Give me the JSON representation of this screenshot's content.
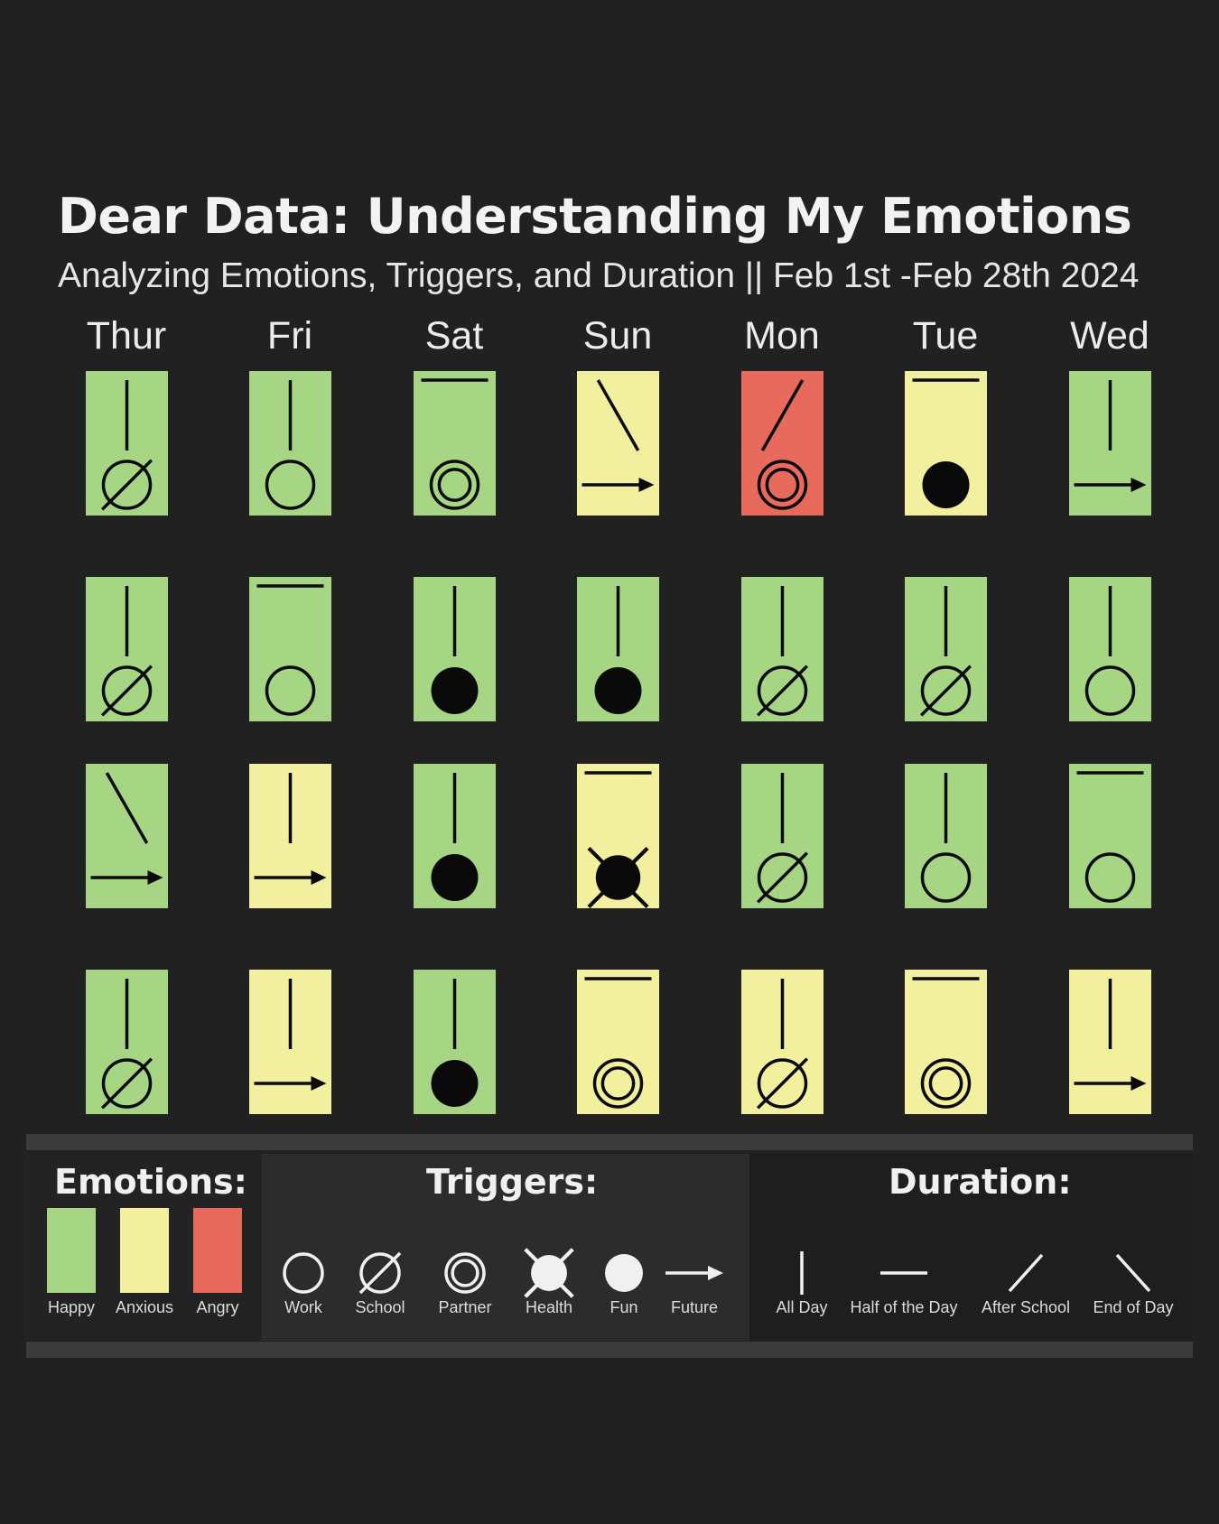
{
  "title": "Dear Data: Understanding My Emotions",
  "subtitle": "Analyzing Emotions, Triggers, and Duration || Feb 1st -Feb 28th 2024",
  "days": [
    "Thur",
    "Fri",
    "Sat",
    "Sun",
    "Mon",
    "Tue",
    "Wed"
  ],
  "colors": {
    "background": "#212121",
    "happy": "#a6d683",
    "anxious": "#f2ef9e",
    "angry": "#e86a5c",
    "stroke": "#0a0a0a"
  },
  "entries": [
    [
      {
        "emotion": "happy",
        "duration": "all-day",
        "trigger": "school"
      },
      {
        "emotion": "happy",
        "duration": "all-day",
        "trigger": "work"
      },
      {
        "emotion": "happy",
        "duration": "half-day",
        "trigger": "partner"
      },
      {
        "emotion": "anxious",
        "duration": "end-of-day",
        "trigger": "future"
      },
      {
        "emotion": "angry",
        "duration": "after-school",
        "trigger": "partner"
      },
      {
        "emotion": "anxious",
        "duration": "half-day",
        "trigger": "fun"
      },
      {
        "emotion": "happy",
        "duration": "all-day",
        "trigger": "future"
      }
    ],
    [
      {
        "emotion": "happy",
        "duration": "all-day",
        "trigger": "school"
      },
      {
        "emotion": "happy",
        "duration": "half-day",
        "trigger": "work"
      },
      {
        "emotion": "happy",
        "duration": "all-day",
        "trigger": "fun"
      },
      {
        "emotion": "happy",
        "duration": "all-day",
        "trigger": "fun"
      },
      {
        "emotion": "happy",
        "duration": "all-day",
        "trigger": "school"
      },
      {
        "emotion": "happy",
        "duration": "all-day",
        "trigger": "school"
      },
      {
        "emotion": "happy",
        "duration": "all-day",
        "trigger": "work"
      }
    ],
    [
      {
        "emotion": "happy",
        "duration": "end-of-day",
        "trigger": "future"
      },
      {
        "emotion": "anxious",
        "duration": "all-day",
        "trigger": "future"
      },
      {
        "emotion": "happy",
        "duration": "all-day",
        "trigger": "fun"
      },
      {
        "emotion": "anxious",
        "duration": "half-day",
        "trigger": "health"
      },
      {
        "emotion": "happy",
        "duration": "all-day",
        "trigger": "school"
      },
      {
        "emotion": "happy",
        "duration": "all-day",
        "trigger": "work"
      },
      {
        "emotion": "happy",
        "duration": "half-day",
        "trigger": "work"
      }
    ],
    [
      {
        "emotion": "happy",
        "duration": "all-day",
        "trigger": "school"
      },
      {
        "emotion": "anxious",
        "duration": "all-day",
        "trigger": "future"
      },
      {
        "emotion": "happy",
        "duration": "all-day",
        "trigger": "fun"
      },
      {
        "emotion": "anxious",
        "duration": "half-day",
        "trigger": "partner"
      },
      {
        "emotion": "anxious",
        "duration": "all-day",
        "trigger": "school"
      },
      {
        "emotion": "anxious",
        "duration": "half-day",
        "trigger": "partner"
      },
      {
        "emotion": "anxious",
        "duration": "all-day",
        "trigger": "future"
      }
    ]
  ],
  "legend": {
    "emotions_heading": "Emotions:",
    "triggers_heading": "Triggers:",
    "duration_heading": "Duration:",
    "emotions": [
      {
        "key": "happy",
        "label": "Happy"
      },
      {
        "key": "anxious",
        "label": "Anxious"
      },
      {
        "key": "angry",
        "label": "Angry"
      }
    ],
    "triggers": [
      {
        "key": "work",
        "label": "Work"
      },
      {
        "key": "school",
        "label": "School"
      },
      {
        "key": "partner",
        "label": "Partner"
      },
      {
        "key": "health",
        "label": "Health"
      },
      {
        "key": "fun",
        "label": "Fun"
      },
      {
        "key": "future",
        "label": "Future"
      }
    ],
    "durations": [
      {
        "key": "all-day",
        "label": "All Day"
      },
      {
        "key": "half-day",
        "label": "Half of the Day"
      },
      {
        "key": "after-school",
        "label": "After School"
      },
      {
        "key": "end-of-day",
        "label": "End of Day"
      }
    ]
  }
}
